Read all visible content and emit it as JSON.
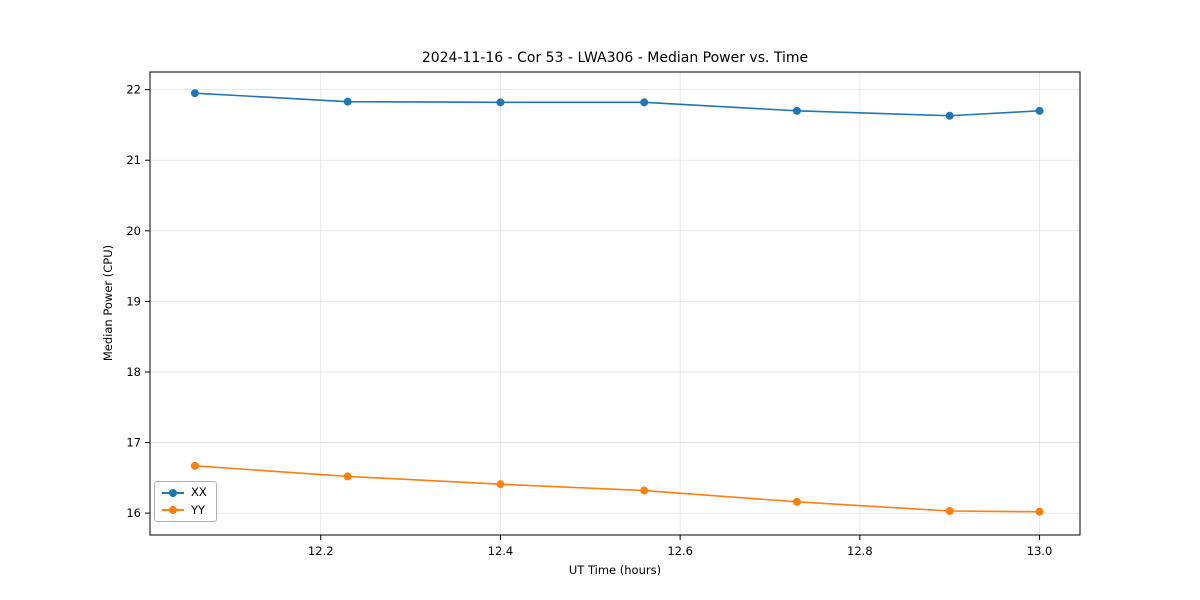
{
  "chart_data": {
    "type": "line",
    "title": "2024-11-16 - Cor 53 - LWA306 - Median Power vs. Time",
    "xlabel": "UT Time (hours)",
    "ylabel": "Median Power (CPU)",
    "x": [
      12.06,
      12.23,
      12.4,
      12.56,
      12.73,
      12.9,
      13.0
    ],
    "series": [
      {
        "name": "XX",
        "color": "#1f77b4",
        "values": [
          21.95,
          21.83,
          21.82,
          21.82,
          21.7,
          21.63,
          21.7
        ]
      },
      {
        "name": "YY",
        "color": "#ff7f0e",
        "values": [
          16.67,
          16.52,
          16.41,
          16.32,
          16.16,
          16.03,
          16.02
        ]
      }
    ],
    "xlim": [
      12.01,
      13.045
    ],
    "ylim": [
      15.69,
      22.25
    ],
    "xticks": [
      12.2,
      12.4,
      12.6,
      12.8,
      13.0
    ],
    "yticks": [
      16,
      17,
      18,
      19,
      20,
      21,
      22
    ],
    "grid": true,
    "legend_position": "lower-left"
  }
}
